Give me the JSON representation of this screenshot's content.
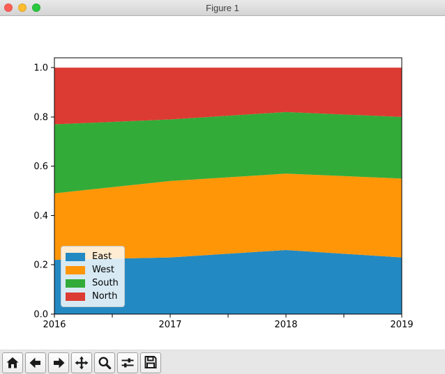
{
  "window": {
    "title": "Figure 1",
    "controls": {
      "close_color": "#ff5f57",
      "minimize_color": "#febc2e",
      "zoom_color": "#2ac83e"
    }
  },
  "chart_data": {
    "type": "area",
    "stacked": true,
    "normalized": true,
    "title": "",
    "xlabel": "",
    "ylabel": "",
    "x": [
      2016,
      2017,
      2018,
      2019
    ],
    "series": [
      {
        "name": "East",
        "color": "#2389c2",
        "values": [
          0.22,
          0.23,
          0.26,
          0.23
        ]
      },
      {
        "name": "West",
        "color": "#ff9608",
        "values": [
          0.27,
          0.31,
          0.31,
          0.32
        ]
      },
      {
        "name": "South",
        "color": "#33ab38",
        "values": [
          0.28,
          0.25,
          0.25,
          0.25
        ]
      },
      {
        "name": "North",
        "color": "#dc3b33",
        "values": [
          0.23,
          0.21,
          0.18,
          0.2
        ]
      }
    ],
    "xlim": [
      2016,
      2019
    ],
    "ylim": [
      0,
      1.04
    ],
    "xticks": [
      2016,
      2017,
      2018,
      2019
    ],
    "minor_xticks": [
      2016.5,
      2017.5,
      2018.5
    ],
    "yticks": [
      0.0,
      0.2,
      0.4,
      0.6,
      0.8,
      1.0
    ],
    "grid": false,
    "legend": {
      "location": "lower left",
      "entries": [
        "East",
        "West",
        "South",
        "North"
      ]
    },
    "axis_color": "#000000",
    "background": "#ffffff"
  },
  "toolbar": {
    "buttons": [
      {
        "name": "home"
      },
      {
        "name": "back"
      },
      {
        "name": "forward"
      },
      {
        "name": "pan"
      },
      {
        "name": "zoom"
      },
      {
        "name": "configure-subplots"
      },
      {
        "name": "save"
      }
    ]
  }
}
